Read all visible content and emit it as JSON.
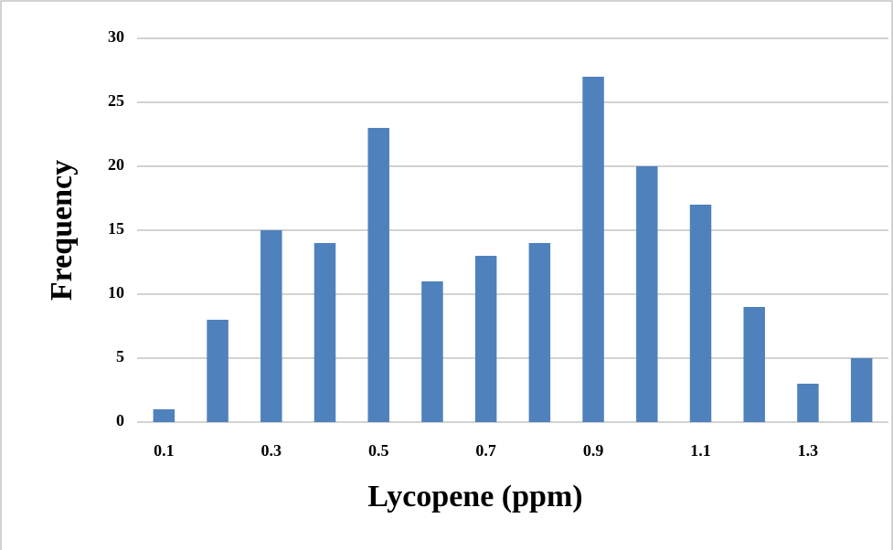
{
  "chart_data": {
    "type": "bar",
    "x_label": "Lycopene (ppm)",
    "y_label": "Frequency",
    "categories": [
      "0.1",
      null,
      "0.3",
      null,
      "0.5",
      null,
      "0.7",
      null,
      "0.9",
      null,
      "1.1",
      null,
      "1.3",
      null
    ],
    "values": [
      1,
      8,
      15,
      14,
      23,
      11,
      13,
      14,
      27,
      20,
      17,
      9,
      3,
      5
    ],
    "color": "#4f81bd",
    "ylim": [
      0,
      30
    ],
    "yticks": [
      0,
      5,
      10,
      15,
      20,
      25,
      30
    ],
    "grid": true
  }
}
